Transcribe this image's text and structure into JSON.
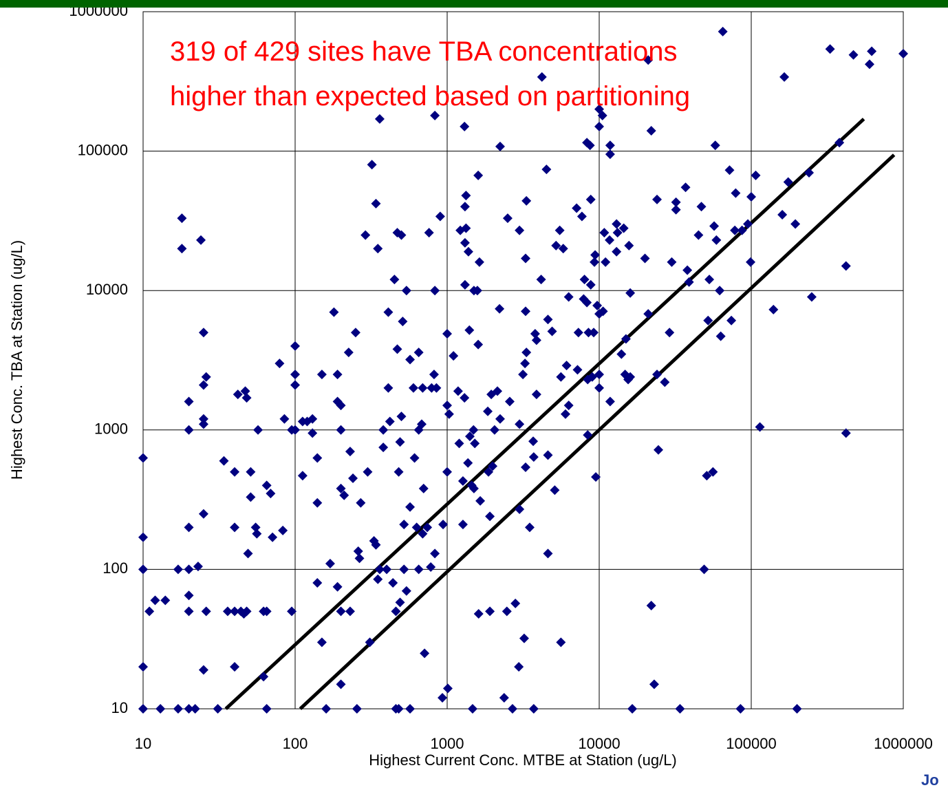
{
  "chart_data": {
    "type": "scatter",
    "xlabel": "Highest Current Conc. MTBE at Station (ug/L)",
    "ylabel": "Highest Conc. TBA at Station (ug/L)",
    "annotations": [
      "319 of 429 sites have TBA concentrations",
      "higher than expected based on partitioning"
    ],
    "corner_text": "Jo",
    "xscale": "log",
    "yscale": "log",
    "xlim": [
      10,
      1000000
    ],
    "ylim": [
      10,
      1000000
    ],
    "xticks": [
      10,
      100,
      1000,
      10000,
      100000,
      1000000
    ],
    "yticks": [
      10,
      100,
      1000,
      10000,
      100000,
      1000000
    ],
    "grid": true,
    "color": "#000080",
    "lines": [
      {
        "color": "#000000",
        "x": [
          35,
          550000
        ],
        "values": [
          10,
          170000
        ]
      },
      {
        "color": "#000000",
        "x": [
          108,
          870000
        ],
        "values": [
          10,
          94000
        ]
      }
    ],
    "x": [
      10,
      10,
      10,
      10,
      10,
      11,
      12,
      13,
      14,
      17,
      18,
      18,
      17,
      20,
      20,
      20,
      20,
      20,
      20,
      20,
      22,
      23,
      24,
      25,
      25,
      25,
      25,
      25,
      25,
      26,
      26,
      31,
      34,
      40,
      40,
      40,
      36,
      40,
      42,
      44,
      46,
      47,
      48,
      48,
      49,
      51,
      51,
      55,
      56,
      57,
      62,
      62,
      65,
      65,
      65,
      69,
      71,
      79,
      83,
      85,
      95,
      95,
      100,
      100,
      100,
      100,
      112,
      112,
      120,
      130,
      130,
      140,
      140,
      140,
      150,
      150,
      160,
      170,
      180,
      190,
      190,
      190,
      200,
      200,
      200,
      200,
      200,
      210,
      225,
      230,
      230,
      240,
      250,
      255,
      260,
      265,
      270,
      290,
      300,
      310,
      320,
      330,
      340,
      340,
      350,
      350,
      360,
      360,
      380,
      380,
      400,
      410,
      410,
      420,
      440,
      450,
      460,
      460,
      470,
      470,
      480,
      500,
      480,
      490,
      490,
      500,
      510,
      520,
      520,
      540,
      540,
      570,
      570,
      570,
      600,
      610,
      630,
      650,
      650,
      650,
      680,
      690,
      690,
      700,
      710,
      740,
      760,
      780,
      790,
      820,
      830,
      830,
      830,
      850,
      900,
      930,
      940,
      1000,
      1000,
      1000,
      1010,
      1030,
      1100,
      1180,
      1200,
      1220,
      1270,
      1270,
      1300,
      1300,
      1310,
      1310,
      1310,
      1330,
      1330,
      1370,
      1380,
      1400,
      1410,
      1450,
      1470,
      1490,
      1500,
      1500,
      1520,
      1580,
      1600,
      1600,
      1610,
      1630,
      1650,
      1850,
      1870,
      1910,
      1910,
      1950,
      1990,
      2050,
      2140,
      2210,
      2230,
      2230,
      2370,
      2470,
      2500,
      2580,
      2690,
      2810,
      2960,
      2990,
      2990,
      2990,
      3150,
      3210,
      3250,
      3280,
      3280,
      3280,
      3320,
      3320,
      3490,
      3680,
      3710,
      3710,
      3790,
      3870,
      3870,
      4150,
      4200,
      4500,
      4600,
      4600,
      4600,
      4900,
      5100,
      5200,
      5500,
      5600,
      5600,
      5800,
      6000,
      6100,
      6300,
      6300,
      7100,
      7200,
      7300,
      7700,
      7900,
      8000,
      8300,
      8300,
      8400,
      8400,
      8500,
      8700,
      8800,
      8800,
      9000,
      9200,
      9300,
      9400,
      9500,
      9700,
      10000,
      10000,
      10000,
      10000,
      10000,
      10500,
      10600,
      10800,
      11000,
      11700,
      11800,
      11800,
      11800,
      13000,
      13000,
      13200,
      14000,
      14500,
      14800,
      15000,
      15500,
      15700,
      16000,
      16000,
      16500,
      20000,
      21000,
      21000,
      22000,
      22000,
      23000,
      24000,
      24000,
      24500,
      27000,
      29000,
      30000,
      32000,
      32000,
      34000,
      37000,
      38000,
      39000,
      45000,
      47000,
      49000,
      51000,
      52000,
      53000,
      56000,
      57000,
      58000,
      59000,
      62000,
      63000,
      65000,
      72000,
      74000,
      79000,
      78000,
      85000,
      87000,
      95000,
      99000,
      100000,
      107000,
      114000,
      140000,
      160000,
      165000,
      175000,
      195000,
      200000,
      240000,
      250000,
      330000,
      380000,
      420000,
      420000,
      470000,
      600000,
      620000,
      1000000
    ],
    "values": [
      10,
      20,
      100,
      170,
      630,
      50,
      60,
      10,
      60,
      10,
      33000,
      20000,
      100,
      10,
      1600,
      1000,
      200,
      100,
      65,
      50,
      10,
      105,
      23000,
      19,
      5000,
      1200,
      1100,
      250,
      2100,
      2400,
      50,
      10,
      600,
      20,
      500,
      200,
      50,
      50,
      1800,
      50,
      48,
      1900,
      1700,
      50,
      130,
      330,
      500,
      200,
      180,
      1000,
      17,
      50,
      50,
      10,
      400,
      350,
      170,
      3000,
      190,
      1200,
      1000,
      50,
      4000,
      2500,
      2100,
      1000,
      470,
      1150,
      1150,
      1200,
      950,
      300,
      630,
      80,
      30,
      2500,
      10,
      110,
      7000,
      2500,
      75,
      1600,
      1500,
      1000,
      380,
      50,
      15,
      340,
      3600,
      700,
      50,
      450,
      5000,
      10,
      135,
      120,
      300,
      25000,
      500,
      30,
      80000,
      160,
      150,
      42000,
      20000,
      85,
      170000,
      100,
      750,
      1000,
      100,
      7000,
      2000,
      1150,
      80,
      12000,
      50,
      10,
      3800,
      26000,
      500,
      1250,
      10,
      58,
      820,
      25000,
      6000,
      210,
      100,
      70,
      10000,
      280,
      3200,
      10,
      2000,
      630,
      200,
      1000,
      100,
      3600,
      1100,
      2000,
      180,
      380,
      25,
      200,
      26000,
      104,
      2000,
      2500,
      10000,
      130,
      180000,
      2000,
      34000,
      12,
      210,
      4900,
      1500,
      500,
      14,
      1300,
      3400,
      1900,
      800,
      27000,
      430,
      210,
      150000,
      1700,
      22000,
      11000,
      40000,
      48000,
      28000,
      580,
      19000,
      5200,
      900,
      400,
      10,
      1000,
      380,
      10000,
      800,
      10000,
      67000,
      4100,
      48,
      16000,
      310,
      1360,
      500,
      50,
      240,
      1800,
      550,
      1000,
      1900,
      7400,
      108000,
      1200,
      12,
      50,
      33000,
      1600,
      10,
      57,
      20,
      27000,
      270,
      1100,
      2500,
      32,
      3000,
      17000,
      7100,
      540,
      3600,
      44000,
      200,
      830,
      640,
      10,
      4900,
      4400,
      1800,
      12000,
      340000,
      74000,
      6200,
      660,
      130,
      5100,
      370,
      21000,
      27000,
      30,
      2400,
      20000,
      1300,
      2900,
      9000,
      1500,
      39000,
      2700,
      5000,
      34000,
      8700,
      12000,
      115000,
      8200,
      2300,
      920,
      5000,
      110000,
      45000,
      11000,
      2400,
      5000,
      16000,
      18000,
      460,
      7800,
      200000,
      150000,
      2500,
      2000,
      6800,
      180000,
      7100,
      26000,
      16000,
      23000,
      95000,
      110000,
      1600,
      19000,
      30000,
      26000,
      3500,
      28000,
      2500,
      4500,
      2300,
      21000,
      2400,
      9600,
      10,
      17000,
      450000,
      6800,
      55,
      140000,
      15,
      45000,
      2500,
      720,
      2200,
      5000,
      16000,
      43000,
      38000,
      10,
      55000,
      14000,
      11500,
      25000,
      40000,
      100,
      470,
      6100,
      12000,
      500,
      29000,
      110000,
      23000,
      10000,
      4700,
      720000,
      73000,
      6100,
      50000,
      27000,
      10,
      27000,
      30000,
      16000,
      47000,
      67000,
      1050,
      7300,
      35000,
      340000,
      60000,
      30000,
      10,
      70000,
      9000,
      540000,
      115000,
      15000,
      950,
      490000,
      420000,
      520000,
      500000
    ]
  }
}
